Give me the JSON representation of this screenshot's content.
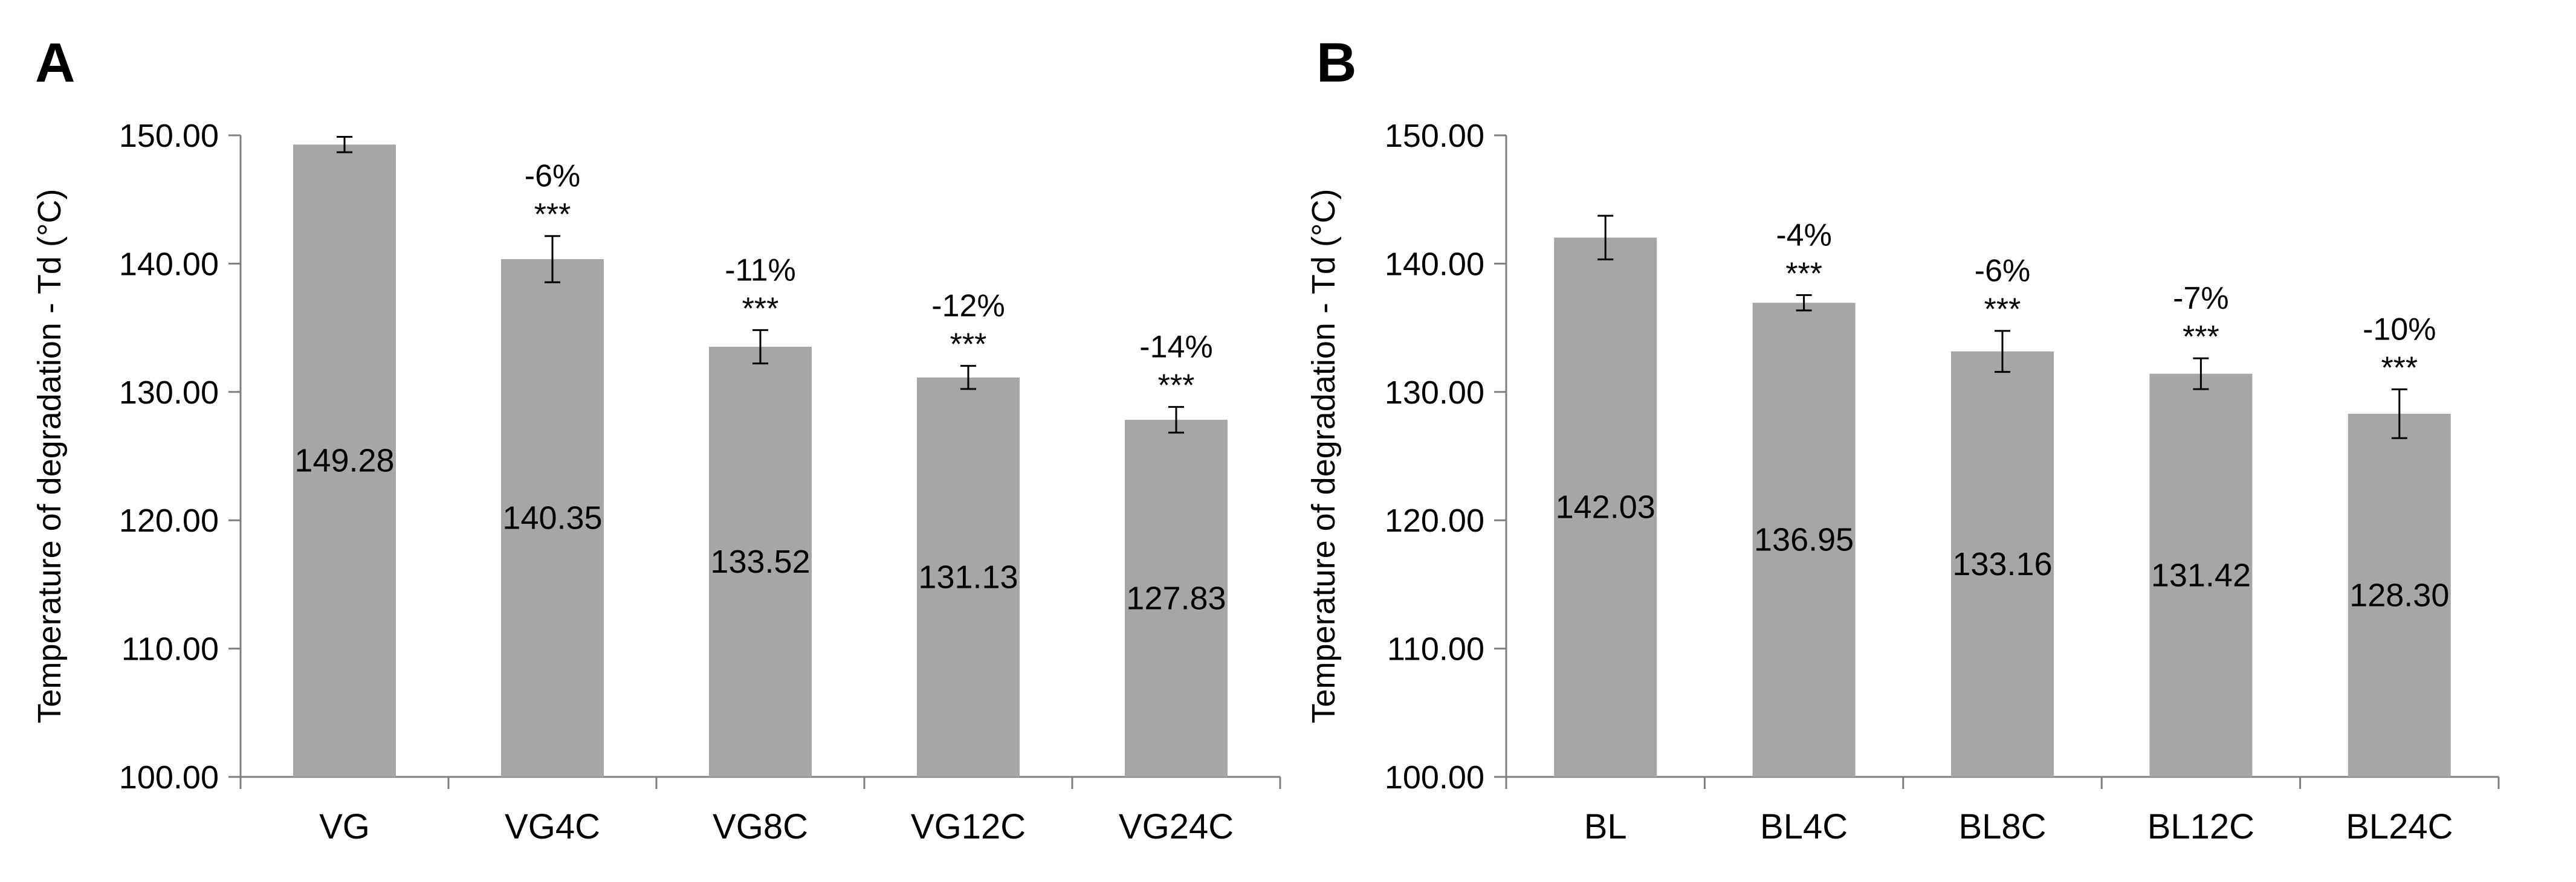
{
  "chart_data": [
    {
      "type": "bar",
      "panel": "A",
      "ylabel": "Temperature of degradation - Td (°C)",
      "xlabel": "",
      "ylim": [
        100,
        150
      ],
      "ystep": 10,
      "yticks": [
        "100.00",
        "110.00",
        "120.00",
        "130.00",
        "140.00",
        "150.00"
      ],
      "categories": [
        "VG",
        "VG4C",
        "VG8C",
        "VG12C",
        "VG24C"
      ],
      "values": [
        149.28,
        140.35,
        133.52,
        131.13,
        127.83
      ],
      "value_labels": [
        "149.28",
        "140.35",
        "133.52",
        "131.13",
        "127.83"
      ],
      "errors": [
        0.6,
        1.8,
        1.3,
        0.9,
        1.0
      ],
      "percent_labels": [
        "",
        "-6%",
        "-11%",
        "-12%",
        "-14%"
      ],
      "significance": [
        "",
        "***",
        "***",
        "***",
        "***"
      ],
      "bar_color": "#a6a6a6",
      "grid": false
    },
    {
      "type": "bar",
      "panel": "B",
      "ylabel": "Temperature of degradation - Td (°C)",
      "xlabel": "",
      "ylim": [
        100,
        150
      ],
      "ystep": 10,
      "yticks": [
        "100.00",
        "110.00",
        "120.00",
        "130.00",
        "140.00",
        "150.00"
      ],
      "categories": [
        "BL",
        "BL4C",
        "BL8C",
        "BL12C",
        "BL24C"
      ],
      "values": [
        142.03,
        136.95,
        133.16,
        131.42,
        128.3
      ],
      "value_labels": [
        "142.03",
        "136.95",
        "133.16",
        "131.42",
        "128.30"
      ],
      "errors": [
        1.7,
        0.6,
        1.6,
        1.2,
        1.9
      ],
      "percent_labels": [
        "",
        "-4%",
        "-6%",
        "-7%",
        "-10%"
      ],
      "significance": [
        "",
        "***",
        "***",
        "***",
        "***"
      ],
      "bar_color": "#a6a6a6",
      "grid": false
    }
  ]
}
